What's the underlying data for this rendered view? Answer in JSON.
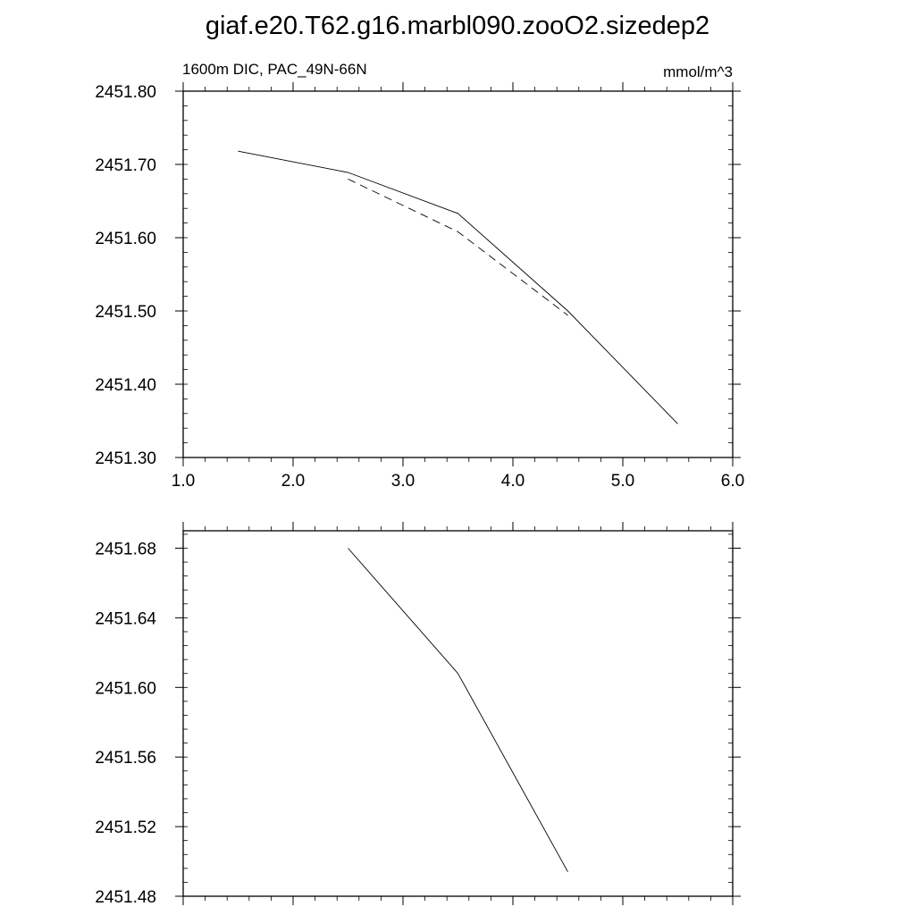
{
  "title": "giaf.e20.T62.g16.marbl090.zooO2.sizedep2",
  "chart_data": [
    {
      "type": "line",
      "left_label": "1600m DIC, PAC_49N-66N",
      "right_label": "mmol/m^3",
      "xlim": [
        1.0,
        6.0
      ],
      "ylim": [
        2451.3,
        2451.8
      ],
      "x_ticks": [
        1.0,
        2.0,
        3.0,
        4.0,
        5.0,
        6.0
      ],
      "x_tick_labels": [
        "1.0",
        "2.0",
        "3.0",
        "4.0",
        "5.0",
        "6.0"
      ],
      "y_ticks": [
        2451.3,
        2451.4,
        2451.5,
        2451.6,
        2451.7,
        2451.8
      ],
      "y_tick_labels": [
        "2451.30",
        "2451.40",
        "2451.50",
        "2451.60",
        "2451.70",
        "2451.80"
      ],
      "grid": false,
      "series": [
        {
          "style": "solid",
          "color": "#000000",
          "x": [
            1.5,
            2.5,
            3.5,
            4.5,
            5.5
          ],
          "y": [
            2451.718,
            2451.689,
            2451.633,
            2451.5,
            2451.346
          ]
        },
        {
          "style": "dashed",
          "color": "#000000",
          "x": [
            2.5,
            3.5,
            4.5
          ],
          "y": [
            2451.68,
            2451.608,
            2451.494
          ]
        }
      ]
    },
    {
      "type": "line",
      "xlim": [
        1.0,
        6.0
      ],
      "ylim": [
        2451.48,
        2451.69
      ],
      "x_ticks": [
        1.0,
        2.0,
        3.0,
        4.0,
        5.0,
        6.0
      ],
      "y_ticks": [
        2451.48,
        2451.52,
        2451.56,
        2451.6,
        2451.64,
        2451.68
      ],
      "y_tick_labels": [
        "2451.48",
        "2451.52",
        "2451.56",
        "2451.60",
        "2451.64",
        "2451.68"
      ],
      "grid": false,
      "series": [
        {
          "style": "solid",
          "color": "#000000",
          "x": [
            2.5,
            3.5,
            4.5
          ],
          "y": [
            2451.68,
            2451.608,
            2451.494
          ]
        }
      ]
    }
  ]
}
